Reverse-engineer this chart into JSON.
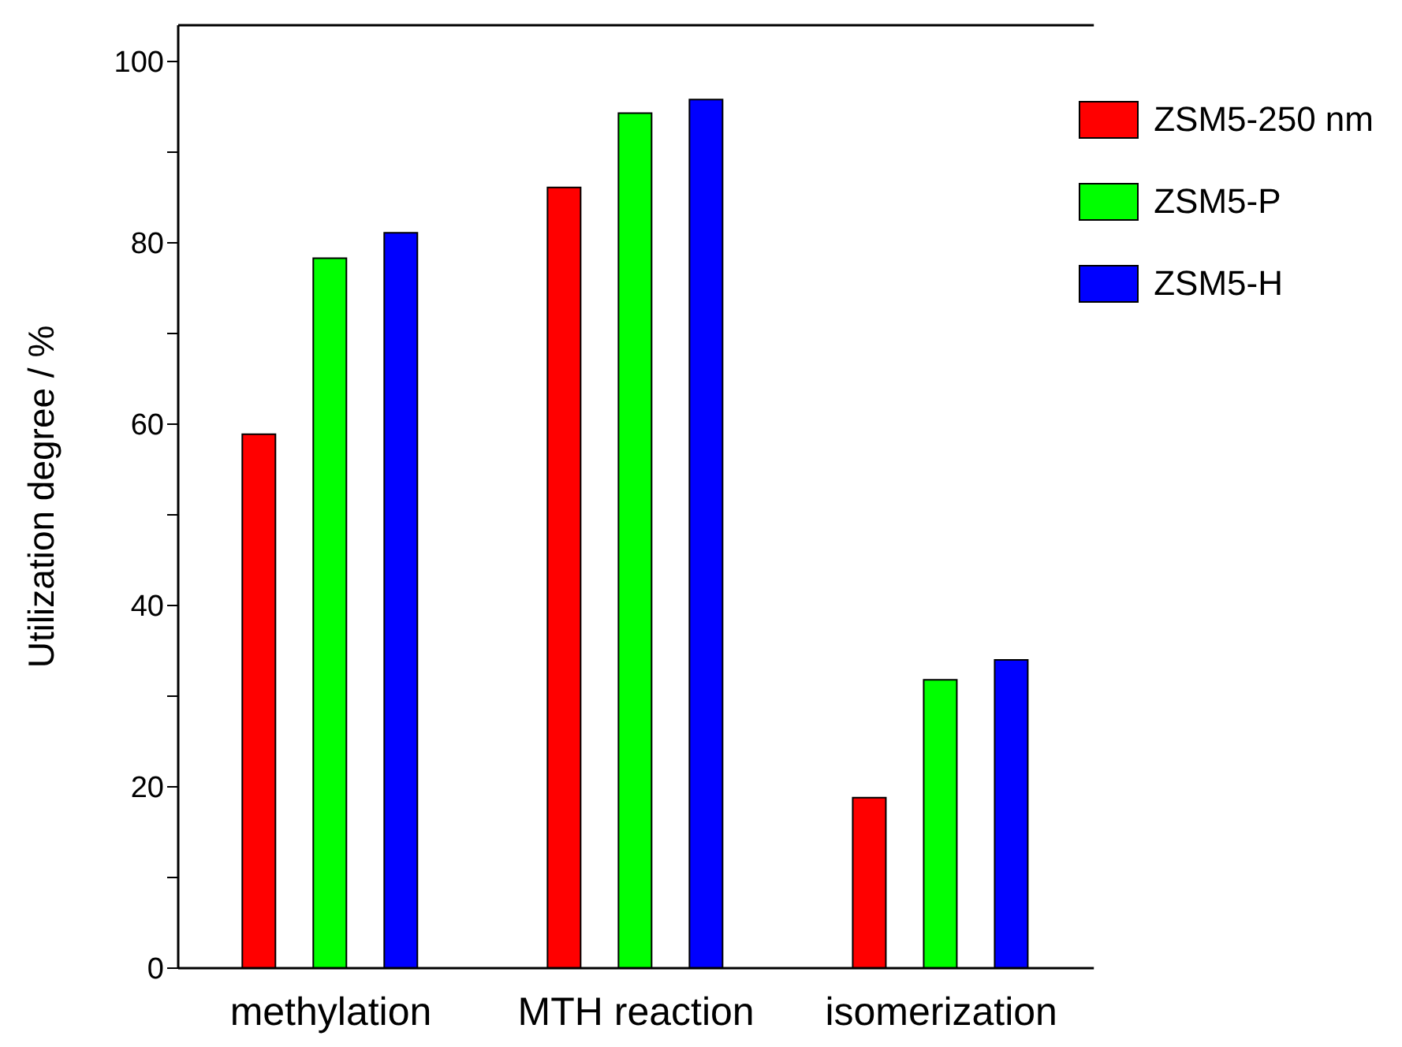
{
  "chart_data": {
    "type": "bar",
    "ylabel": "Utilization degree / %",
    "categories": [
      "methylation",
      "MTH reaction",
      "isomerization"
    ],
    "series": [
      {
        "name": "ZSM5-250 nm",
        "color": "#ff0000",
        "values": [
          58.9,
          86.1,
          18.8
        ]
      },
      {
        "name": "ZSM5-P",
        "color": "#00ff00",
        "values": [
          78.3,
          94.3,
          31.8
        ]
      },
      {
        "name": "ZSM5-H",
        "color": "#0000ff",
        "values": [
          81.1,
          95.8,
          34.0
        ]
      }
    ],
    "ylim": [
      0,
      104
    ],
    "yticks": [
      0,
      {
        "value": 10,
        "label": null
      },
      20,
      {
        "value": 30,
        "label": null
      },
      40,
      {
        "value": 50,
        "label": null
      },
      60,
      {
        "value": 70,
        "label": null
      },
      80,
      {
        "value": 90,
        "label": null
      },
      100
    ],
    "legend": "top right"
  }
}
